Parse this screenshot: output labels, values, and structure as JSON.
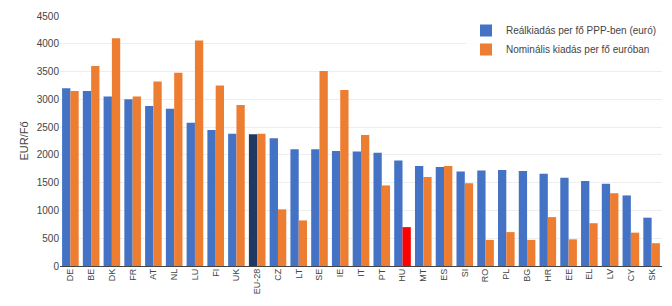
{
  "chart_data": {
    "type": "bar",
    "categories": [
      "DE",
      "BE",
      "DK",
      "FR",
      "AT",
      "NL",
      "LU",
      "FI",
      "UK",
      "EU-28",
      "CZ",
      "LT",
      "SE",
      "IE",
      "IT",
      "PT",
      "HU",
      "MT",
      "ES",
      "SI",
      "RO",
      "PL",
      "BG",
      "HR",
      "EE",
      "EL",
      "LV",
      "CY",
      "SK"
    ],
    "series": [
      {
        "name": "Reálkiadás per fő PPP-ben (euró)",
        "values": [
          3200,
          3150,
          3050,
          3000,
          2880,
          2830,
          2580,
          2450,
          2380,
          2370,
          2300,
          2100,
          2100,
          2070,
          2060,
          2040,
          1900,
          1800,
          1780,
          1700,
          1720,
          1730,
          1710,
          1660,
          1590,
          1530,
          1480,
          1270,
          870
        ],
        "colors": [
          "#4472C4",
          "#4472C4",
          "#4472C4",
          "#4472C4",
          "#4472C4",
          "#4472C4",
          "#4472C4",
          "#4472C4",
          "#4472C4",
          "#1F3864",
          "#4472C4",
          "#4472C4",
          "#4472C4",
          "#4472C4",
          "#4472C4",
          "#4472C4",
          "#4472C4",
          "#4472C4",
          "#4472C4",
          "#4472C4",
          "#4472C4",
          "#4472C4",
          "#4472C4",
          "#4472C4",
          "#4472C4",
          "#4472C4",
          "#4472C4",
          "#4472C4",
          "#4472C4"
        ]
      },
      {
        "name": "Nominális kiadás per fő euróban",
        "values": [
          3150,
          3600,
          4100,
          3050,
          3320,
          3480,
          4060,
          3250,
          2900,
          2380,
          1020,
          820,
          3510,
          3170,
          2360,
          1450,
          700,
          1600,
          1800,
          1490,
          470,
          610,
          470,
          880,
          480,
          770,
          1310,
          600,
          410
        ],
        "colors": [
          "#ED7D31",
          "#ED7D31",
          "#ED7D31",
          "#ED7D31",
          "#ED7D31",
          "#ED7D31",
          "#ED7D31",
          "#ED7D31",
          "#ED7D31",
          "#ED7D31",
          "#ED7D31",
          "#ED7D31",
          "#ED7D31",
          "#ED7D31",
          "#ED7D31",
          "#ED7D31",
          "#FF0000",
          "#ED7D31",
          "#ED7D31",
          "#ED7D31",
          "#ED7D31",
          "#ED7D31",
          "#ED7D31",
          "#ED7D31",
          "#ED7D31",
          "#ED7D31",
          "#ED7D31",
          "#ED7D31",
          "#ED7D31"
        ]
      }
    ],
    "ylabel": "EUR/Fő",
    "ylim": [
      0,
      4500
    ],
    "yticks": [
      0,
      500,
      1000,
      1500,
      2000,
      2500,
      3000,
      3500,
      4000,
      4500
    ],
    "grid": true,
    "legend": "upper right"
  }
}
